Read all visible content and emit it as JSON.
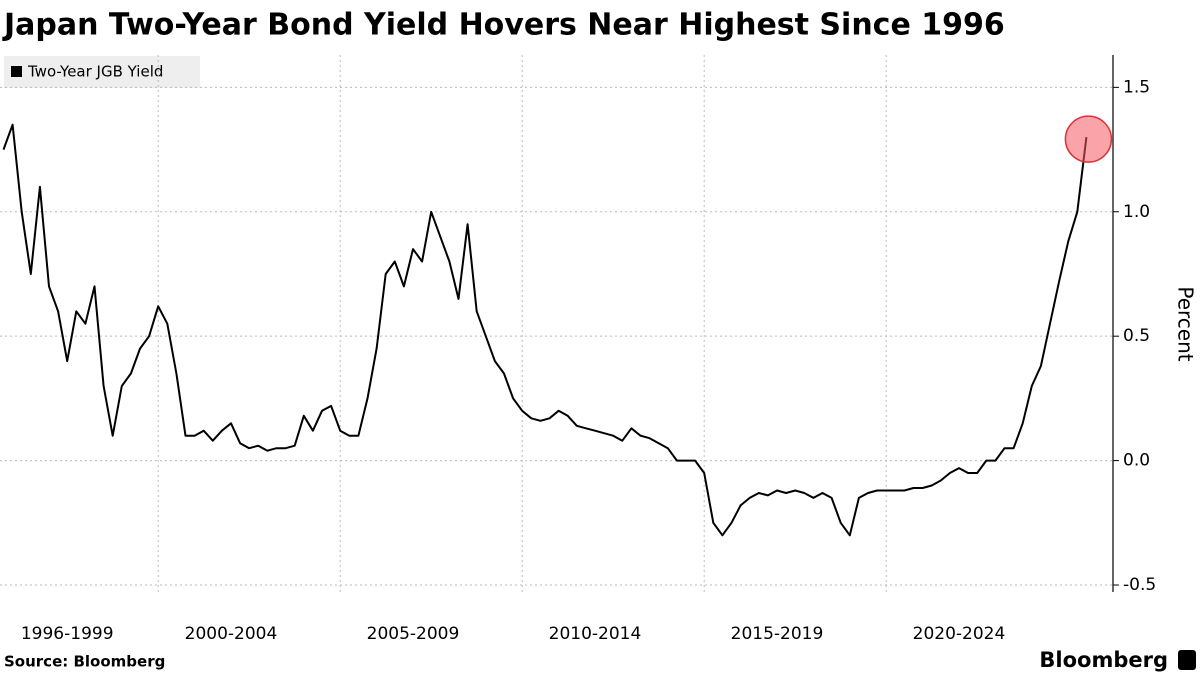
{
  "chart_data": {
    "type": "line",
    "title": "Japan Two-Year Bond Yield Hovers Near Highest Since 1996",
    "source": "Source: Bloomberg",
    "brand": "Bloomberg",
    "y_label": "Percent",
    "categories": [
      null,
      null,
      null,
      null,
      null,
      null,
      null,
      "1996-1999",
      null,
      null,
      null,
      null,
      null,
      null,
      null,
      null,
      null,
      null,
      null,
      null,
      null,
      null,
      null,
      null,
      null,
      "2000-2004",
      null,
      null,
      null,
      null,
      null,
      null,
      null,
      null,
      null,
      null,
      null,
      null,
      null,
      null,
      null,
      null,
      null,
      null,
      null,
      "2005-2009",
      null,
      null,
      null,
      null,
      null,
      null,
      null,
      null,
      null,
      null,
      null,
      null,
      null,
      null,
      null,
      null,
      null,
      null,
      null,
      "2010-2014",
      null,
      null,
      null,
      null,
      null,
      null,
      null,
      null,
      null,
      null,
      null,
      null,
      null,
      null,
      null,
      null,
      null,
      null,
      null,
      "2015-2019",
      null,
      null,
      null,
      null,
      null,
      null,
      null,
      null,
      null,
      null,
      null,
      null,
      null,
      null,
      null,
      null,
      null,
      null,
      null,
      "2020-2024",
      null,
      null,
      null,
      null,
      null,
      null,
      null,
      null,
      null,
      null,
      null,
      null,
      null,
      null
    ],
    "series": [
      {
        "name": "Two-Year JGB Yield",
        "color": "#000000",
        "values": [
          1.25,
          1.35,
          1.0,
          0.75,
          1.1,
          0.7,
          0.6,
          0.4,
          0.6,
          0.55,
          0.7,
          0.3,
          0.1,
          0.3,
          0.35,
          0.45,
          0.5,
          0.62,
          0.55,
          0.35,
          0.1,
          0.1,
          0.12,
          0.08,
          0.12,
          0.15,
          0.07,
          0.05,
          0.06,
          0.04,
          0.05,
          0.05,
          0.06,
          0.18,
          0.12,
          0.2,
          0.22,
          0.12,
          0.1,
          0.1,
          0.25,
          0.45,
          0.75,
          0.8,
          0.7,
          0.85,
          0.8,
          1.0,
          0.9,
          0.8,
          0.65,
          0.95,
          0.6,
          0.5,
          0.4,
          0.35,
          0.25,
          0.2,
          0.17,
          0.16,
          0.17,
          0.2,
          0.18,
          0.14,
          0.13,
          0.12,
          0.11,
          0.1,
          0.08,
          0.13,
          0.1,
          0.09,
          0.07,
          0.05,
          0.0,
          0.0,
          0.0,
          -0.05,
          -0.25,
          -0.3,
          -0.25,
          -0.18,
          -0.15,
          -0.13,
          -0.14,
          -0.12,
          -0.13,
          -0.12,
          -0.13,
          -0.15,
          -0.13,
          -0.15,
          -0.25,
          -0.3,
          -0.15,
          -0.13,
          -0.12,
          -0.12,
          -0.12,
          -0.12,
          -0.11,
          -0.11,
          -0.1,
          -0.08,
          -0.05,
          -0.03,
          -0.05,
          -0.05,
          0.0,
          0.0,
          0.05,
          0.05,
          0.15,
          0.3,
          0.38,
          0.55,
          0.72,
          0.88,
          1.0,
          1.3
        ]
      }
    ],
    "ylim": [
      -0.52,
      1.63
    ],
    "yticks": [
      -0.5,
      {
        "value": 0,
        "label": "0.0"
      },
      0.5,
      {
        "value": 1,
        "label": "1.0"
      },
      1.5
    ],
    "grid": true,
    "legend": "top-left"
  }
}
